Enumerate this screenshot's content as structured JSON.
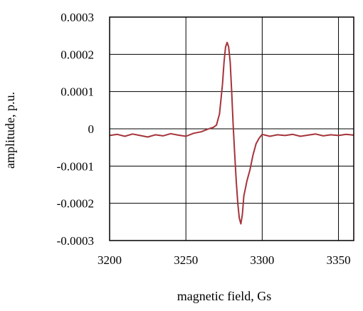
{
  "chart_data": {
    "type": "line",
    "title": "",
    "xlabel": "magnetic field, Gs",
    "ylabel": "amplitude, p.u.",
    "xlim": [
      3200,
      3360
    ],
    "ylim": [
      -0.0003,
      0.0003
    ],
    "grid": true,
    "x_ticks": [
      3200,
      3250,
      3300,
      3350
    ],
    "x_tick_labels": [
      "3200",
      "3250",
      "3300",
      "3350"
    ],
    "y_ticks": [
      0.0003,
      0.0002,
      0.0001,
      0,
      -0.0001,
      -0.0002,
      -0.0003
    ],
    "y_tick_labels": [
      "0.0003",
      "0.0002",
      "0.0001",
      "0",
      "-0.0001",
      "-0.0002",
      "-0.0003"
    ],
    "series": [
      {
        "color": "#a5343a",
        "x": [
          3200,
          3205,
          3210,
          3215,
          3220,
          3225,
          3230,
          3235,
          3240,
          3245,
          3250,
          3255,
          3260,
          3265,
          3268,
          3270,
          3272,
          3274,
          3275,
          3276,
          3277,
          3278,
          3279,
          3280,
          3281,
          3282,
          3283,
          3284,
          3285,
          3286,
          3287,
          3288,
          3289,
          3290,
          3292,
          3294,
          3296,
          3298,
          3300,
          3305,
          3310,
          3315,
          3320,
          3325,
          3330,
          3335,
          3340,
          3345,
          3350,
          3355,
          3360
        ],
        "y": [
          -1.8e-05,
          -1.5e-05,
          -2e-05,
          -1.4e-05,
          -1.8e-05,
          -2.2e-05,
          -1.6e-05,
          -1.9e-05,
          -1.3e-05,
          -1.7e-05,
          -2e-05,
          -1.2e-05,
          -8e-06,
          0.0,
          4e-06,
          1e-05,
          4e-05,
          0.00012,
          0.00018,
          0.00022,
          0.000232,
          0.00022,
          0.00018,
          0.0001,
          1e-05,
          -7e-05,
          -0.00014,
          -0.0002,
          -0.00024,
          -0.000255,
          -0.00023,
          -0.00018,
          -0.00016,
          -0.00014,
          -0.00011,
          -7e-05,
          -4e-05,
          -2.5e-05,
          -1.5e-05,
          -2e-05,
          -1.6e-05,
          -1.8e-05,
          -1.5e-05,
          -2e-05,
          -1.7e-05,
          -1.4e-05,
          -1.9e-05,
          -1.6e-05,
          -1.8e-05,
          -1.5e-05,
          -1.7e-05
        ]
      }
    ]
  }
}
